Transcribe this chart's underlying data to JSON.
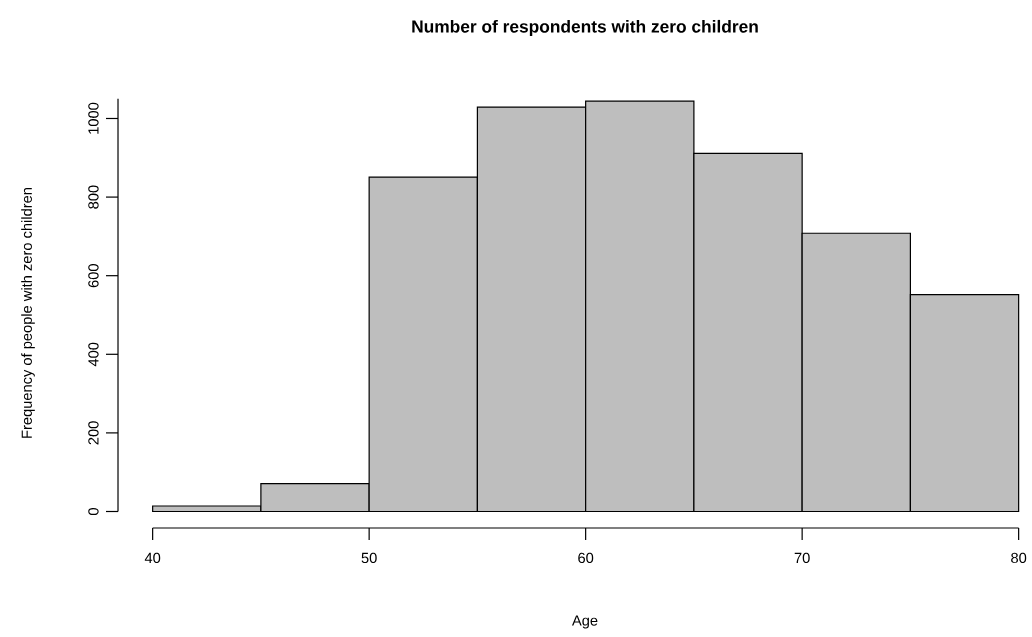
{
  "chart_data": {
    "type": "histogram",
    "title": "Number of respondents with zero children",
    "xlabel": "Age",
    "ylabel": "Frequency of people with zero children",
    "bins": [
      40,
      45,
      50,
      55,
      60,
      65,
      70,
      75,
      80
    ],
    "values": [
      14,
      71,
      851,
      1029,
      1044,
      911,
      708,
      552
    ],
    "color": "#bebebe",
    "xlim": [
      40,
      80
    ],
    "ylim": [
      0,
      1050
    ],
    "xticks": [
      40,
      50,
      60,
      70,
      80
    ],
    "yticks": [
      0,
      200,
      400,
      600,
      800,
      1000
    ]
  }
}
